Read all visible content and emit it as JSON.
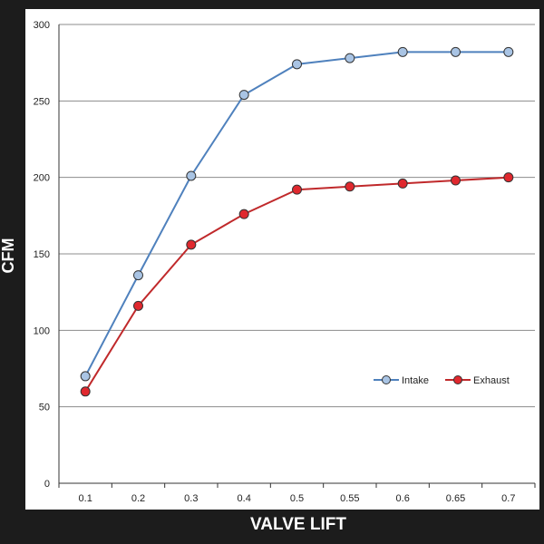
{
  "chart_data": {
    "type": "line",
    "title": "",
    "xlabel": "VALVE LIFT",
    "ylabel": "CFM",
    "categories": [
      "0.1",
      "0.2",
      "0.3",
      "0.4",
      "0.5",
      "0.55",
      "0.6",
      "0.65",
      "0.7"
    ],
    "yticks": [
      "0",
      "50",
      "100",
      "150",
      "200",
      "250",
      "300"
    ],
    "ylim": [
      0,
      300
    ],
    "grid": "horizontal",
    "legend_position": "right",
    "series": [
      {
        "name": "Intake",
        "color": "#4f81bd",
        "marker_fill": "#a9c4e4",
        "values": [
          70,
          136,
          201,
          254,
          274,
          278,
          282,
          282,
          282
        ]
      },
      {
        "name": "Exhaust",
        "color": "#c0292b",
        "marker_fill": "#e0282e",
        "values": [
          60,
          116,
          156,
          176,
          192,
          194,
          196,
          198,
          200
        ]
      }
    ]
  }
}
